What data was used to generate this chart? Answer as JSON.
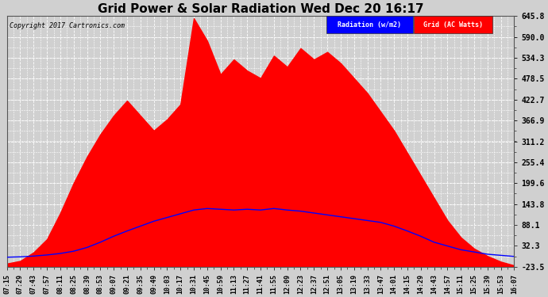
{
  "title": "Grid Power & Solar Radiation Wed Dec 20 16:17",
  "copyright": "Copyright 2017 Cartronics.com",
  "legend_radiation": "Radiation (w/m2)",
  "legend_grid": "Grid (AC Watts)",
  "yticks": [
    645.8,
    590.0,
    534.3,
    478.5,
    422.7,
    366.9,
    311.2,
    255.4,
    199.6,
    143.8,
    88.1,
    32.3,
    -23.5
  ],
  "ymin": -23.5,
  "ymax": 645.8,
  "background_color": "#d0d0d0",
  "plot_bg_color": "#d0d0d0",
  "grid_color": "#ffffff",
  "radiation_color": "#0000ff",
  "grid_fill_color": "#ff0000",
  "title_fontsize": 11,
  "xtick_labels": [
    "07:15",
    "07:29",
    "07:43",
    "07:57",
    "08:11",
    "08:25",
    "08:39",
    "08:53",
    "09:07",
    "09:21",
    "09:35",
    "09:49",
    "10:03",
    "10:17",
    "10:31",
    "10:45",
    "10:59",
    "11:13",
    "11:27",
    "11:41",
    "11:55",
    "12:09",
    "12:23",
    "12:37",
    "12:51",
    "13:05",
    "13:19",
    "13:33",
    "13:47",
    "14:01",
    "14:15",
    "14:29",
    "14:43",
    "14:57",
    "15:11",
    "15:25",
    "15:39",
    "15:53",
    "16:07"
  ],
  "radiation_data": [
    2,
    3,
    5,
    8,
    12,
    18,
    28,
    42,
    58,
    72,
    85,
    98,
    108,
    118,
    128,
    132,
    130,
    128,
    130,
    128,
    132,
    128,
    125,
    120,
    115,
    110,
    105,
    100,
    95,
    85,
    72,
    58,
    42,
    32,
    22,
    16,
    10,
    7,
    4
  ],
  "grid_data": [
    -15,
    -8,
    15,
    50,
    120,
    200,
    270,
    330,
    380,
    420,
    380,
    340,
    370,
    410,
    640,
    580,
    490,
    530,
    500,
    480,
    540,
    510,
    560,
    530,
    550,
    520,
    480,
    440,
    390,
    340,
    280,
    220,
    160,
    100,
    55,
    25,
    5,
    -10,
    -20
  ]
}
